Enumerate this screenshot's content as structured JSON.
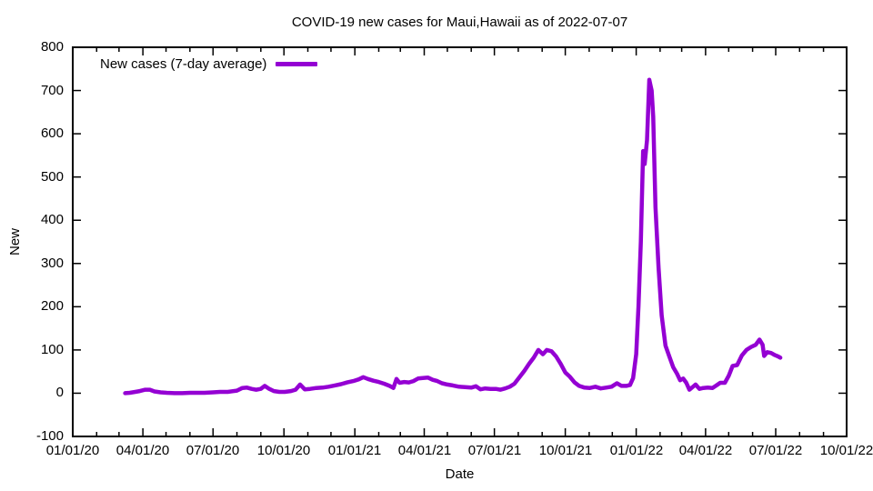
{
  "accent_color": "#9400d3",
  "chart_data": {
    "type": "line",
    "title": "COVID-19 new cases for Maui,Hawaii as of 2022-07-07",
    "xlabel": "Date",
    "ylabel": "New",
    "ylim": [
      -100,
      800
    ],
    "xlim": [
      "2020-01-01",
      "2022-10-01"
    ],
    "grid": false,
    "legend_position": "top-left-inside",
    "y_ticks": [
      -100,
      0,
      100,
      200,
      300,
      400,
      500,
      600,
      700,
      800
    ],
    "x_ticks": [
      {
        "date": "2020-01-01",
        "label": "01/01/20"
      },
      {
        "date": "2020-04-01",
        "label": "04/01/20"
      },
      {
        "date": "2020-07-01",
        "label": "07/01/20"
      },
      {
        "date": "2020-10-01",
        "label": "10/01/20"
      },
      {
        "date": "2021-01-01",
        "label": "01/01/21"
      },
      {
        "date": "2021-04-01",
        "label": "04/01/21"
      },
      {
        "date": "2021-07-01",
        "label": "07/01/21"
      },
      {
        "date": "2021-10-01",
        "label": "10/01/21"
      },
      {
        "date": "2022-01-01",
        "label": "01/01/22"
      },
      {
        "date": "2022-04-01",
        "label": "04/01/22"
      },
      {
        "date": "2022-07-01",
        "label": "07/01/22"
      },
      {
        "date": "2022-10-01",
        "label": "10/01/22"
      }
    ],
    "series": [
      {
        "name": "New cases (7-day average)",
        "color": "#9400d3",
        "points": [
          [
            "2020-03-09",
            0
          ],
          [
            "2020-03-15",
            1
          ],
          [
            "2020-03-22",
            3
          ],
          [
            "2020-03-28",
            5
          ],
          [
            "2020-04-04",
            8
          ],
          [
            "2020-04-10",
            8
          ],
          [
            "2020-04-16",
            4
          ],
          [
            "2020-04-24",
            2
          ],
          [
            "2020-05-02",
            1
          ],
          [
            "2020-05-12",
            0
          ],
          [
            "2020-05-22",
            0
          ],
          [
            "2020-06-01",
            1
          ],
          [
            "2020-06-10",
            1
          ],
          [
            "2020-06-20",
            1
          ],
          [
            "2020-07-01",
            2
          ],
          [
            "2020-07-10",
            3
          ],
          [
            "2020-07-20",
            3
          ],
          [
            "2020-08-01",
            6
          ],
          [
            "2020-08-08",
            12
          ],
          [
            "2020-08-14",
            13
          ],
          [
            "2020-08-20",
            10
          ],
          [
            "2020-08-26",
            8
          ],
          [
            "2020-09-01",
            10
          ],
          [
            "2020-09-06",
            17
          ],
          [
            "2020-09-12",
            10
          ],
          [
            "2020-09-18",
            5
          ],
          [
            "2020-09-25",
            3
          ],
          [
            "2020-10-02",
            3
          ],
          [
            "2020-10-10",
            5
          ],
          [
            "2020-10-16",
            8
          ],
          [
            "2020-10-22",
            20
          ],
          [
            "2020-10-28",
            9
          ],
          [
            "2020-11-04",
            10
          ],
          [
            "2020-11-12",
            12
          ],
          [
            "2020-11-20",
            13
          ],
          [
            "2020-11-28",
            15
          ],
          [
            "2020-12-06",
            18
          ],
          [
            "2020-12-14",
            21
          ],
          [
            "2020-12-22",
            25
          ],
          [
            "2020-12-30",
            28
          ],
          [
            "2021-01-06",
            32
          ],
          [
            "2021-01-12",
            37
          ],
          [
            "2021-01-18",
            33
          ],
          [
            "2021-01-25",
            29
          ],
          [
            "2021-02-01",
            26
          ],
          [
            "2021-02-08",
            22
          ],
          [
            "2021-02-15",
            17
          ],
          [
            "2021-02-20",
            12
          ],
          [
            "2021-02-24",
            33
          ],
          [
            "2021-02-28",
            24
          ],
          [
            "2021-03-06",
            26
          ],
          [
            "2021-03-12",
            25
          ],
          [
            "2021-03-18",
            28
          ],
          [
            "2021-03-24",
            34
          ],
          [
            "2021-03-30",
            35
          ],
          [
            "2021-04-06",
            36
          ],
          [
            "2021-04-12",
            31
          ],
          [
            "2021-04-18",
            28
          ],
          [
            "2021-04-24",
            23
          ],
          [
            "2021-05-01",
            20
          ],
          [
            "2021-05-08",
            18
          ],
          [
            "2021-05-16",
            15
          ],
          [
            "2021-05-24",
            14
          ],
          [
            "2021-06-01",
            13
          ],
          [
            "2021-06-07",
            16
          ],
          [
            "2021-06-13",
            9
          ],
          [
            "2021-06-19",
            11
          ],
          [
            "2021-06-26",
            10
          ],
          [
            "2021-07-03",
            10
          ],
          [
            "2021-07-09",
            8
          ],
          [
            "2021-07-15",
            11
          ],
          [
            "2021-07-21",
            15
          ],
          [
            "2021-07-27",
            22
          ],
          [
            "2021-08-03",
            38
          ],
          [
            "2021-08-09",
            52
          ],
          [
            "2021-08-15",
            68
          ],
          [
            "2021-08-21",
            82
          ],
          [
            "2021-08-27",
            100
          ],
          [
            "2021-09-02",
            90
          ],
          [
            "2021-09-07",
            100
          ],
          [
            "2021-09-13",
            97
          ],
          [
            "2021-09-19",
            85
          ],
          [
            "2021-09-25",
            68
          ],
          [
            "2021-10-01",
            48
          ],
          [
            "2021-10-07",
            38
          ],
          [
            "2021-10-13",
            25
          ],
          [
            "2021-10-19",
            17
          ],
          [
            "2021-10-26",
            13
          ],
          [
            "2021-11-02",
            12
          ],
          [
            "2021-11-09",
            15
          ],
          [
            "2021-11-16",
            11
          ],
          [
            "2021-11-23",
            13
          ],
          [
            "2021-11-30",
            15
          ],
          [
            "2021-12-07",
            23
          ],
          [
            "2021-12-13",
            17
          ],
          [
            "2021-12-19",
            17
          ],
          [
            "2021-12-24",
            19
          ],
          [
            "2021-12-28",
            35
          ],
          [
            "2022-01-01",
            90
          ],
          [
            "2022-01-04",
            200
          ],
          [
            "2022-01-07",
            350
          ],
          [
            "2022-01-10",
            560
          ],
          [
            "2022-01-12",
            530
          ],
          [
            "2022-01-15",
            585
          ],
          [
            "2022-01-18",
            725
          ],
          [
            "2022-01-21",
            700
          ],
          [
            "2022-01-23",
            640
          ],
          [
            "2022-01-26",
            430
          ],
          [
            "2022-01-30",
            290
          ],
          [
            "2022-02-03",
            180
          ],
          [
            "2022-02-08",
            110
          ],
          [
            "2022-02-13",
            85
          ],
          [
            "2022-02-18",
            60
          ],
          [
            "2022-02-23",
            45
          ],
          [
            "2022-02-27",
            30
          ],
          [
            "2022-03-03",
            34
          ],
          [
            "2022-03-07",
            24
          ],
          [
            "2022-03-11",
            8
          ],
          [
            "2022-03-15",
            14
          ],
          [
            "2022-03-19",
            20
          ],
          [
            "2022-03-24",
            10
          ],
          [
            "2022-03-29",
            12
          ],
          [
            "2022-04-04",
            13
          ],
          [
            "2022-04-10",
            12
          ],
          [
            "2022-04-15",
            18
          ],
          [
            "2022-04-20",
            24
          ],
          [
            "2022-04-26",
            24
          ],
          [
            "2022-05-01",
            40
          ],
          [
            "2022-05-06",
            63
          ],
          [
            "2022-05-12",
            65
          ],
          [
            "2022-05-18",
            87
          ],
          [
            "2022-05-24",
            100
          ],
          [
            "2022-05-30",
            107
          ],
          [
            "2022-06-05",
            112
          ],
          [
            "2022-06-10",
            124
          ],
          [
            "2022-06-14",
            112
          ],
          [
            "2022-06-16",
            86
          ],
          [
            "2022-06-20",
            95
          ],
          [
            "2022-06-25",
            93
          ],
          [
            "2022-06-30",
            88
          ],
          [
            "2022-07-04",
            85
          ],
          [
            "2022-07-07",
            82
          ]
        ]
      }
    ]
  }
}
